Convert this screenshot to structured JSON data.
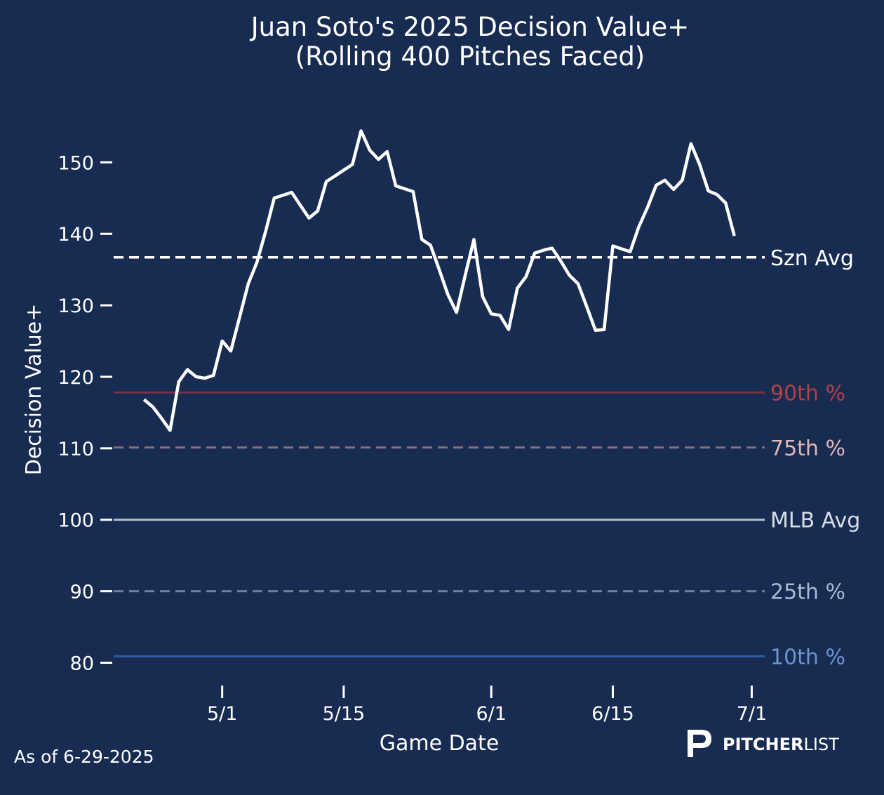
{
  "chart_data": {
    "type": "line",
    "title_line1": "Juan Soto's 2025 Decision Value+",
    "title_line2": "(Rolling 400 Pitches Faced)",
    "xlabel": "Game Date",
    "ylabel": "Decision Value+",
    "ylim": [
      77,
      157
    ],
    "y_ticks": [
      80,
      90,
      100,
      110,
      120,
      130,
      140,
      150
    ],
    "x_ticks": [
      {
        "label": "5/1",
        "day": 0
      },
      {
        "label": "5/15",
        "day": 14
      },
      {
        "label": "6/1",
        "day": 31
      },
      {
        "label": "6/15",
        "day": 45
      },
      {
        "label": "7/1",
        "day": 61
      }
    ],
    "xlim": [
      -12.5,
      62.5
    ],
    "series": [
      {
        "name": "Decision Value+",
        "color": "#ffffff",
        "points": [
          [
            -9,
            116.8
          ],
          [
            -8,
            115.8
          ],
          [
            -7,
            114.2
          ],
          [
            -6,
            112.5
          ],
          [
            -5,
            119.3
          ],
          [
            -4,
            121.0
          ],
          [
            -3,
            120.0
          ],
          [
            -2,
            119.8
          ],
          [
            -1,
            120.2
          ],
          [
            0,
            125.0
          ],
          [
            1,
            123.6
          ],
          [
            2,
            128.3
          ],
          [
            3,
            133.0
          ],
          [
            4,
            136.0
          ],
          [
            5,
            140.3
          ],
          [
            6,
            145.0
          ],
          [
            7,
            145.4
          ],
          [
            8,
            145.8
          ],
          [
            9,
            144.0
          ],
          [
            10,
            142.2
          ],
          [
            11,
            143.2
          ],
          [
            12,
            147.3
          ],
          [
            13,
            148.1
          ],
          [
            14,
            148.9
          ],
          [
            15,
            149.7
          ],
          [
            16,
            154.4
          ],
          [
            17,
            151.7
          ],
          [
            18,
            150.4
          ],
          [
            19,
            151.5
          ],
          [
            20,
            146.7
          ],
          [
            21,
            146.3
          ],
          [
            22,
            145.9
          ],
          [
            23,
            139.2
          ],
          [
            24,
            138.4
          ],
          [
            25,
            135.0
          ],
          [
            26,
            131.5
          ],
          [
            27,
            129.0
          ],
          [
            28,
            134.2
          ],
          [
            29,
            139.2
          ],
          [
            30,
            131.2
          ],
          [
            31,
            128.8
          ],
          [
            32,
            128.6
          ],
          [
            33,
            126.6
          ],
          [
            34,
            132.4
          ],
          [
            35,
            134.0
          ],
          [
            36,
            137.3
          ],
          [
            37,
            137.7
          ],
          [
            38,
            138.0
          ],
          [
            39,
            136.2
          ],
          [
            40,
            134.2
          ],
          [
            41,
            133.0
          ],
          [
            42,
            129.8
          ],
          [
            43,
            126.5
          ],
          [
            44,
            126.6
          ],
          [
            45,
            138.3
          ],
          [
            46,
            137.9
          ],
          [
            47,
            137.5
          ],
          [
            48,
            141.0
          ],
          [
            49,
            143.7
          ],
          [
            50,
            146.8
          ],
          [
            51,
            147.5
          ],
          [
            52,
            146.2
          ],
          [
            53,
            147.5
          ],
          [
            54,
            152.6
          ],
          [
            55,
            149.7
          ],
          [
            56,
            146.0
          ],
          [
            57,
            145.5
          ],
          [
            58,
            144.3
          ],
          [
            59,
            139.7
          ]
        ]
      }
    ],
    "reference_lines": [
      {
        "label": "Szn Avg",
        "value": 136.7,
        "color": "#ffffff",
        "text_color": "#ffffff",
        "style": "dashed",
        "label_y": 136.7
      },
      {
        "label": "90th %",
        "value": 117.8,
        "color": "#7a3048",
        "text_color": "#b24048",
        "style": "solid",
        "label_y": 117.8
      },
      {
        "label": "75th %",
        "value": 110.1,
        "color": "#84707f",
        "text_color": "#e0b6b4",
        "style": "dashed",
        "label_y": 110.1
      },
      {
        "label": "MLB Avg",
        "value": 100.0,
        "color": "#b6c0cf",
        "text_color": "#d9dee6",
        "style": "solid",
        "label_y": 100.0
      },
      {
        "label": "25th %",
        "value": 90.0,
        "color": "#6f7f99",
        "text_color": "#aab8d1",
        "style": "dashed",
        "label_y": 90.0
      },
      {
        "label": "10th %",
        "value": 80.9,
        "color": "#2d5da5",
        "text_color": "#6d93d3",
        "style": "solid",
        "label_y": 80.9
      }
    ]
  },
  "footer": {
    "as_of": "As of 6-29-2025",
    "brand_bold": "PITCHER",
    "brand_light": "LIST"
  }
}
